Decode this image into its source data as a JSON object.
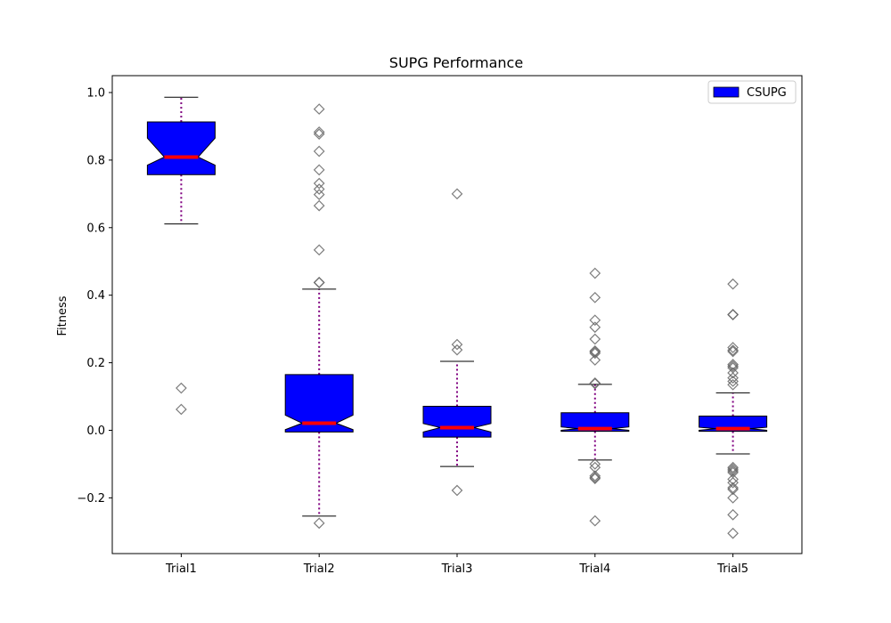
{
  "chart_data": {
    "type": "box",
    "title": "SUPG Performance",
    "xlabel": "",
    "ylabel": "Fitness",
    "categories": [
      "Trial1",
      "Trial2",
      "Trial3",
      "Trial4",
      "Trial5"
    ],
    "ylim": [
      -0.365,
      1.05
    ],
    "yticks": [
      -0.2,
      0.0,
      0.2,
      0.4,
      0.6,
      0.8,
      1.0
    ],
    "ytick_labels": [
      "−0.2",
      "0.0",
      "0.2",
      "0.4",
      "0.6",
      "0.8",
      "1.0"
    ],
    "legend": {
      "label": "CSUPG",
      "placement": "top-right"
    },
    "colors": {
      "box_fill": "#0000ff",
      "median": "#ff0000",
      "whisker": "#800080",
      "flier": "#666666"
    },
    "series": [
      {
        "name": "CSUPG",
        "boxes": [
          {
            "whislo": 0.611,
            "q1": 0.757,
            "notch_lo": 0.785,
            "med": 0.809,
            "notch_hi": 0.865,
            "q3": 0.913,
            "whishi": 0.986,
            "fliers": [
              0.125,
              0.062
            ]
          },
          {
            "whislo": -0.254,
            "q1": -0.005,
            "notch_lo": 0.002,
            "med": 0.021,
            "notch_hi": 0.045,
            "q3": 0.165,
            "whishi": 0.418,
            "fliers": [
              0.951,
              0.883,
              0.877,
              0.826,
              0.771,
              0.731,
              0.714,
              0.698,
              0.665,
              0.534,
              0.438,
              0.437,
              -0.275
            ]
          },
          {
            "whislo": -0.107,
            "q1": -0.02,
            "notch_lo": -0.005,
            "med": 0.008,
            "notch_hi": 0.02,
            "q3": 0.071,
            "whishi": 0.204,
            "fliers": [
              0.7,
              0.254,
              0.238,
              -0.178
            ]
          },
          {
            "whislo": -0.088,
            "q1": -0.003,
            "notch_lo": 0.0,
            "med": 0.005,
            "notch_hi": 0.01,
            "q3": 0.052,
            "whishi": 0.136,
            "fliers": [
              0.465,
              0.393,
              0.326,
              0.305,
              0.27,
              0.235,
              0.232,
              0.228,
              0.208,
              0.14,
              0.138,
              -0.1,
              -0.11,
              -0.135,
              -0.14,
              -0.143,
              -0.268
            ]
          },
          {
            "whislo": -0.07,
            "q1": -0.003,
            "notch_lo": 0.0,
            "med": 0.005,
            "notch_hi": 0.009,
            "q3": 0.042,
            "whishi": 0.111,
            "fliers": [
              0.433,
              0.343,
              0.342,
              0.245,
              0.237,
              0.233,
              0.195,
              0.19,
              0.185,
              0.17,
              0.155,
              0.145,
              0.135,
              -0.11,
              -0.115,
              -0.12,
              -0.125,
              -0.145,
              -0.155,
              -0.17,
              -0.175,
              -0.2,
              -0.25,
              -0.305
            ]
          }
        ]
      }
    ]
  }
}
